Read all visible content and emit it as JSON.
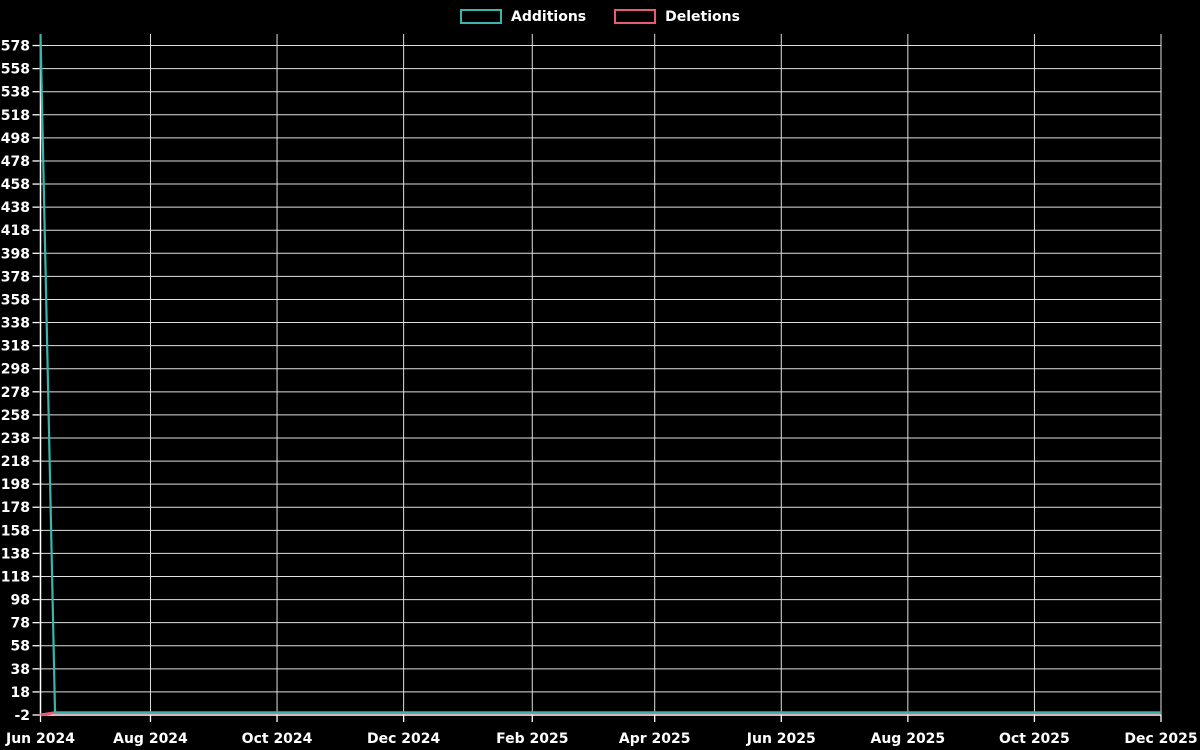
{
  "page": {
    "background_color": "#000000",
    "text_color": "#ffffff",
    "grid_color": "#e0e0e0"
  },
  "legend": {
    "items": [
      {
        "label": "Additions",
        "color": "#3cb4ab"
      },
      {
        "label": "Deletions",
        "color": "#e75c74"
      }
    ]
  },
  "chart_data": {
    "type": "line",
    "title": "",
    "xlabel": "",
    "ylabel": "",
    "grid": true,
    "legend_position": "top-center",
    "x_axis": {
      "type": "time",
      "start": "2024-06-09",
      "end": "2025-12-01",
      "ticks": [
        {
          "label": "Jun 2024",
          "date": "2024-06-09"
        },
        {
          "label": "Aug 2024",
          "date": "2024-08-01"
        },
        {
          "label": "Oct 2024",
          "date": "2024-10-01"
        },
        {
          "label": "Dec 2024",
          "date": "2024-12-01"
        },
        {
          "label": "Feb 2025",
          "date": "2025-02-01"
        },
        {
          "label": "Apr 2025",
          "date": "2025-04-01"
        },
        {
          "label": "Jun 2025",
          "date": "2025-06-01"
        },
        {
          "label": "Aug 2025",
          "date": "2025-08-01"
        },
        {
          "label": "Oct 2025",
          "date": "2025-10-01"
        },
        {
          "label": "Dec 2025",
          "date": "2025-12-01"
        }
      ]
    },
    "y_axis": {
      "min": -2,
      "max": 588,
      "tick_start": -2,
      "tick_step": 20,
      "tick_labels": [
        "-2",
        "18",
        "38",
        "58",
        "78",
        "98",
        "118",
        "138",
        "158",
        "178",
        "198",
        "218",
        "238",
        "258",
        "278",
        "298",
        "318",
        "338",
        "358",
        "378",
        "398",
        "418",
        "438",
        "458",
        "478",
        "498",
        "518",
        "538",
        "558",
        "578"
      ]
    },
    "series": [
      {
        "name": "Additions",
        "color": "#3cb4ab",
        "points": [
          [
            "2024-06-09",
            588
          ],
          [
            "2024-06-16",
            0
          ],
          [
            "2025-12-01",
            0
          ]
        ]
      },
      {
        "name": "Deletions",
        "color": "#e75c74",
        "points": [
          [
            "2024-06-09",
            -2
          ],
          [
            "2024-06-16",
            0
          ],
          [
            "2025-12-01",
            0
          ]
        ]
      }
    ]
  }
}
